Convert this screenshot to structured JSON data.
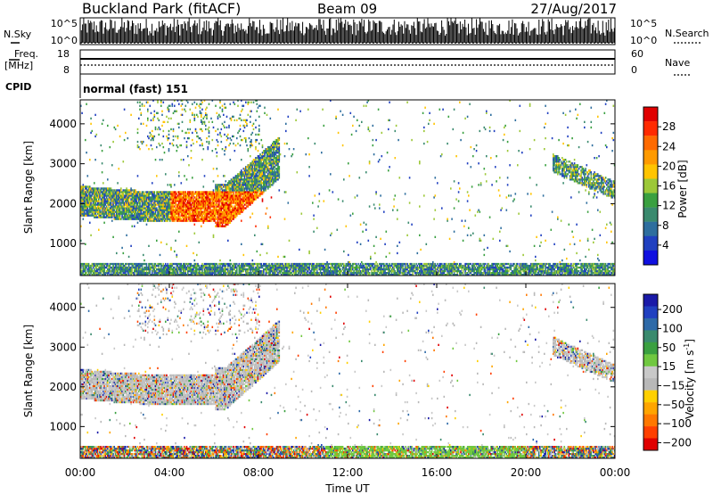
{
  "header": {
    "station": "Buckland Park (fitACF)",
    "beam": "Beam 09",
    "date": "27/Aug/2017"
  },
  "panels": {
    "nsky": {
      "label": "N.Sky",
      "tick_top": "10^5",
      "tick_bottom": "10^0"
    },
    "nsearch": {
      "label": "N.Search",
      "tick_top": "10^5",
      "tick_bottom": "10^0"
    },
    "freq": {
      "label_line1": "Freq.",
      "label_line2": "[MHz]",
      "tick_top": "18",
      "tick_bottom": "8"
    },
    "nave": {
      "label": "Nave",
      "tick_top": "60",
      "tick_bottom": "0"
    },
    "cpid": {
      "label": "CPID",
      "mode": "normal (fast) 151"
    }
  },
  "chart_data": [
    {
      "type": "heatmap",
      "name": "power",
      "ylabel": "Slant Range [km]",
      "yticks": [
        1000,
        2000,
        3000,
        4000
      ],
      "ylim": [
        200,
        4600
      ],
      "xlim": [
        0,
        24
      ],
      "colorbar": {
        "label": "Power [dB]",
        "ticks": [
          "4",
          "8",
          "12",
          "16",
          "20",
          "24",
          "28"
        ],
        "colors": [
          "#1010e0",
          "#2040c0",
          "#2e6e9e",
          "#3a8a6e",
          "#3aa040",
          "#9cc838",
          "#ffc400",
          "#ff9a00",
          "#ff6a00",
          "#ff2a00",
          "#e00000"
        ]
      }
    },
    {
      "type": "heatmap",
      "name": "velocity",
      "ylabel": "Slant Range [km]",
      "yticks": [
        1000,
        2000,
        3000,
        4000
      ],
      "ylim": [
        200,
        4600
      ],
      "xlim": [
        0,
        24
      ],
      "colorbar": {
        "label": "Velocity [m s",
        "label_sup": "-1",
        "label_end": "]",
        "ticks": [
          "200",
          "100",
          "50",
          "15",
          "−15",
          "−50",
          "−100",
          "−200"
        ],
        "colors": [
          "#1a1aa8",
          "#2040c0",
          "#2e6aa8",
          "#3a8a6e",
          "#3aa040",
          "#70c840",
          "#c8c8c8",
          "#b8b8b8",
          "#ffd000",
          "#ffa500",
          "#ff7800",
          "#ff4000",
          "#e00000"
        ]
      }
    }
  ],
  "xaxis": {
    "label": "Time UT",
    "ticks": [
      "00:00",
      "04:00",
      "08:00",
      "12:00",
      "16:00",
      "20:00",
      "00:00"
    ]
  }
}
